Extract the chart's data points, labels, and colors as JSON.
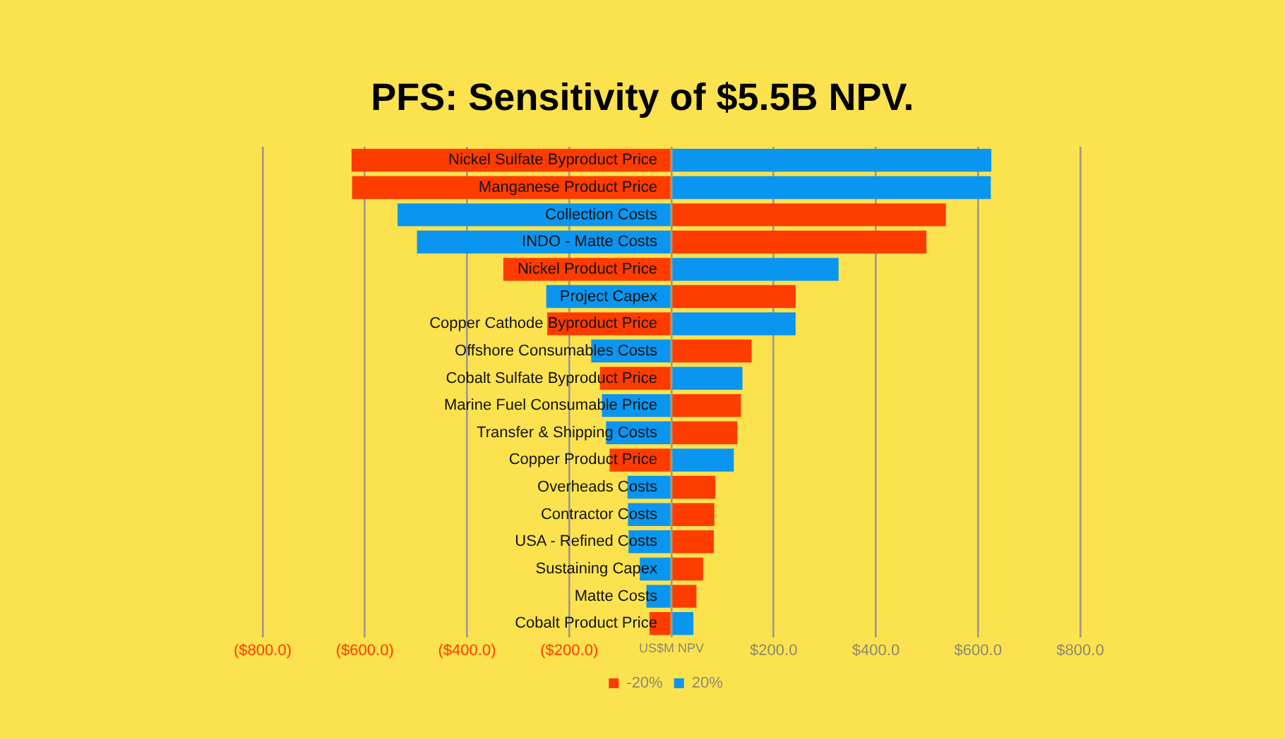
{
  "chart_data": {
    "type": "bar",
    "title": "PFS: Sensitivity of $5.5B NPV.",
    "orientation": "horizontal",
    "stacked": true,
    "categories": [
      "Nickel Sulfate Byproduct Price",
      "Manganese Product Price",
      "Collection Costs",
      "INDO - Matte Costs",
      "Nickel Product Price",
      "Project Capex",
      "Copper Cathode Byproduct Price",
      "Offshore Consumables Costs",
      "Cobalt Sulfate Byproduct Price",
      "Marine Fuel Consumable Price",
      "Transfer & Shipping Costs",
      "Copper Product Price",
      "Overheads Costs",
      "Contractor Costs",
      "USA - Refined Costs",
      "Sustaining Capex",
      "Matte Costs",
      "Cobalt Product Price"
    ],
    "series": [
      {
        "name": "-20%",
        "color": "#ff3c00",
        "values": [
          -626,
          -625,
          537,
          499,
          -329,
          243,
          -243,
          157,
          -140,
          136,
          129,
          -121,
          86,
          84,
          83,
          62,
          49,
          -43
        ]
      },
      {
        "name": "20%",
        "color": "#0a96f0",
        "values": [
          626,
          625,
          -536,
          -498,
          327,
          -245,
          243,
          -157,
          139,
          -136,
          -128,
          122,
          -86,
          -85,
          -84,
          -62,
          -49,
          43
        ]
      }
    ],
    "xlim": [
      -800,
      800
    ],
    "xticks": [
      {
        "value": -800,
        "label": "($800.0)"
      },
      {
        "value": -600,
        "label": "($600.0)"
      },
      {
        "value": -400,
        "label": "($400.0)"
      },
      {
        "value": -200,
        "label": "($200.0)"
      },
      {
        "value": 0,
        "label": "US$M NPV"
      },
      {
        "value": 200,
        "label": "$200.0"
      },
      {
        "value": 400,
        "label": "$400.0"
      },
      {
        "value": 600,
        "label": "$600.0"
      },
      {
        "value": 800,
        "label": "$800.0"
      }
    ],
    "grid": "x",
    "legend": "bottom"
  }
}
